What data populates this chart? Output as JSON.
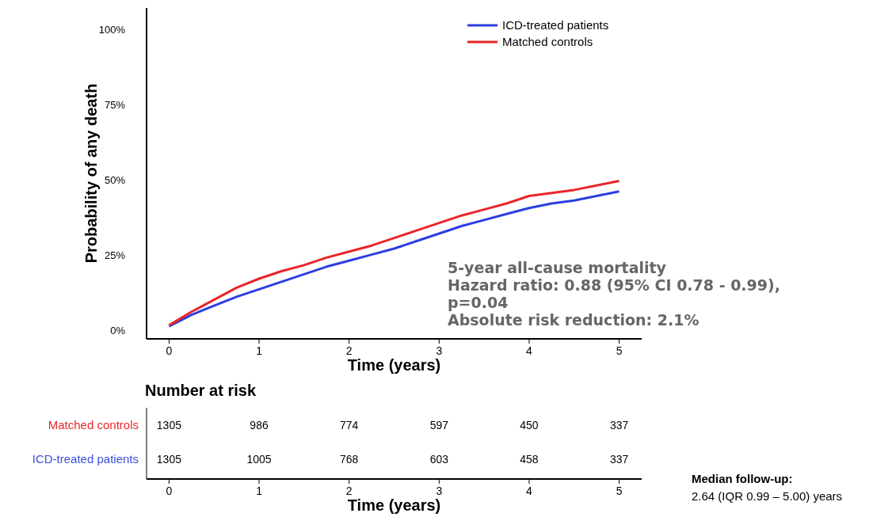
{
  "chart_data": [
    {
      "type": "line",
      "ylabel": "Probability of any death",
      "xlabel": "Time (years)",
      "x": [
        0,
        0.25,
        0.5,
        0.75,
        1,
        1.25,
        1.5,
        1.75,
        2,
        2.25,
        2.5,
        2.75,
        3,
        3.25,
        3.5,
        3.75,
        4,
        4.25,
        4.5,
        4.75,
        5
      ],
      "series": [
        {
          "name": "ICD-treated patients",
          "color": "#2b3ee0",
          "values": [
            1.2,
            5,
            8,
            11,
            13.5,
            16,
            18.5,
            21,
            23,
            25,
            27,
            29.5,
            32,
            34.5,
            36.5,
            38.5,
            40.5,
            42,
            43,
            44.5,
            46
          ]
        },
        {
          "name": "Matched controls",
          "color": "#e8262a",
          "values": [
            1.5,
            6,
            10,
            14,
            17,
            19.5,
            21.5,
            24,
            26,
            28,
            30.5,
            33,
            35.5,
            38,
            40,
            42,
            44.5,
            45.5,
            46.5,
            48,
            49.5
          ]
        }
      ],
      "xlim": [
        -0.25,
        5.25
      ],
      "xticks": [
        0,
        {
          "value": 1,
          "label": "1"
        },
        2,
        3,
        4,
        5
      ],
      "ylim": [
        -3,
        107
      ],
      "yticks": [
        {
          "value": 0,
          "label": "0%"
        },
        {
          "value": 25,
          "label": "25%"
        },
        {
          "value": 50,
          "label": "50%"
        },
        {
          "value": 75,
          "label": "75%"
        },
        {
          "value": 100,
          "label": "100%"
        }
      ],
      "legend": "top right",
      "annotations": [
        "5-year all-cause mortality",
        "Hazard ratio: 0.88 (95% CI 0.78 - 0.99),",
        "p=0.04",
        "Absolute risk reduction: 2.1%"
      ]
    },
    {
      "type": "heatmap",
      "title": "Number at risk",
      "xlabel": "Time (years)",
      "categories": [
        "0",
        "1",
        "2",
        "3",
        "4",
        "5"
      ],
      "y_categories": [
        "Matched controls",
        "ICD-treated patients"
      ],
      "cells": [
        [
          1305,
          986,
          774,
          597,
          450,
          337
        ],
        [
          1305,
          1005,
          768,
          603,
          458,
          337
        ]
      ],
      "data_labels": true,
      "annotations": [
        "Median follow-up:",
        "2.64 (IQR 0.99 – 5.00) years"
      ]
    }
  ]
}
